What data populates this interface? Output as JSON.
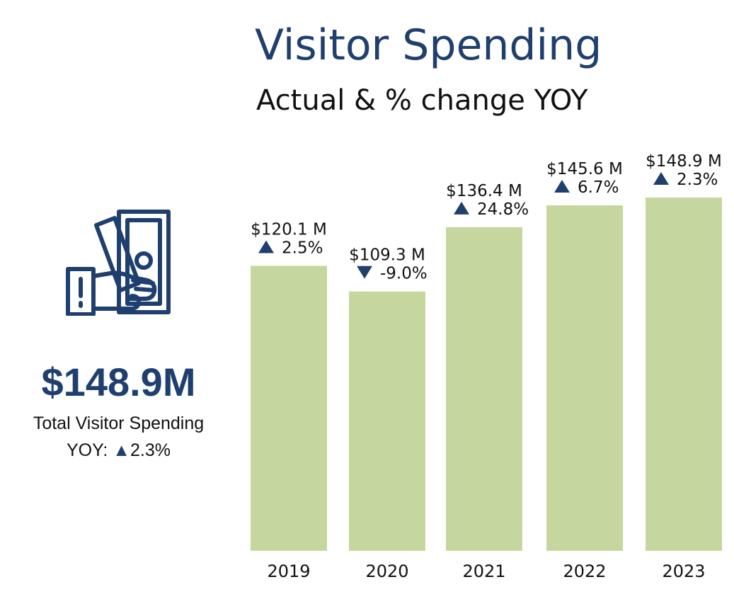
{
  "header": {
    "title": "Visitor Spending",
    "subtitle": "Actual & % change YOY"
  },
  "summary": {
    "icon": "cash-in-hand-icon",
    "value": "$148.9M",
    "label": "Total Visitor Spending",
    "yoy_prefix": "YOY: ",
    "yoy_arrow": "▲",
    "yoy_value": "2.3%"
  },
  "colors": {
    "bar": "#c5d79e",
    "accent": "#1f3f6e",
    "text": "#111111"
  },
  "chart_data": {
    "type": "bar",
    "title": "Visitor Spending",
    "subtitle": "Actual & % change YOY",
    "unit": "$ M",
    "categories": [
      "2019",
      "2020",
      "2021",
      "2022",
      "2023"
    ],
    "values": [
      120.1,
      109.3,
      136.4,
      145.6,
      148.9
    ],
    "value_labels": [
      "$120.1 M",
      "$109.3 M",
      "$136.4 M",
      "$145.6 M",
      "$148.9 M"
    ],
    "yoy_change_pct": [
      2.5,
      -9.0,
      24.8,
      6.7,
      2.3
    ],
    "yoy_labels": [
      "2.5%",
      "-9.0%",
      "24.8%",
      "6.7%",
      "2.3%"
    ],
    "ylim": [
      0,
      148.9
    ],
    "grid": false,
    "legend": "none"
  }
}
